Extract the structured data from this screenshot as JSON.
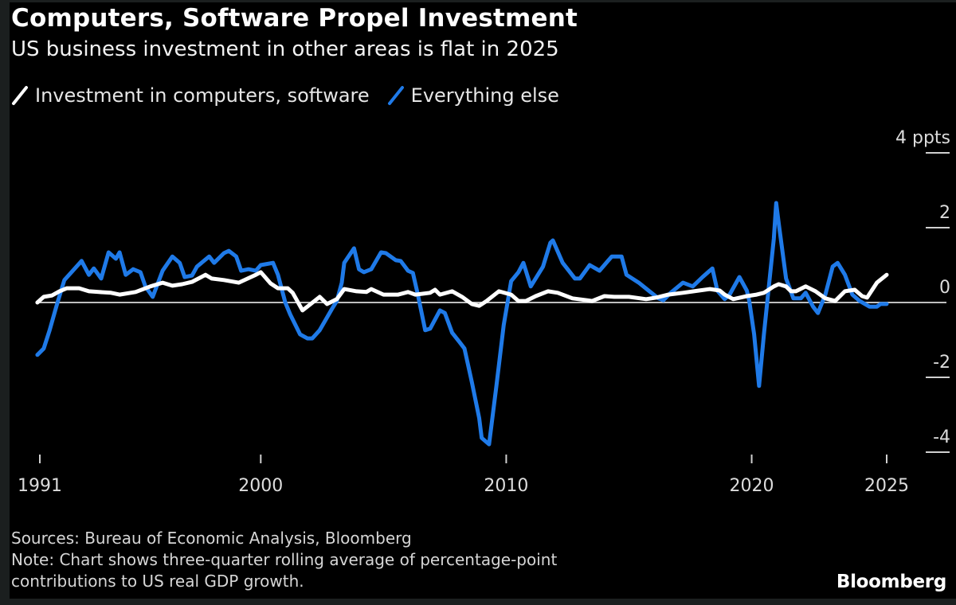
{
  "header": {
    "title": "Computers, Software Propel Investment",
    "subtitle": "US business investment in other areas is flat in 2025"
  },
  "legend": [
    {
      "label": "Investment in computers, software",
      "color": "#ffffff"
    },
    {
      "label": "Everything else",
      "color": "#1f7ae8"
    }
  ],
  "footer": {
    "sources": "Sources: Bureau of Economic Analysis, Bloomberg",
    "note_line1": "Note: Chart shows three-quarter rolling average of percentage-point",
    "note_line2": "contributions to US real GDP growth.",
    "brand": "Bloomberg"
  },
  "chart_data": {
    "type": "line",
    "title": "Computers, Software Propel Investment",
    "subtitle": "US business investment in other areas is flat in 2025",
    "xlabel": "",
    "ylabel": "ppts",
    "xlim": [
      1991,
      2025.5
    ],
    "ylim": [
      -4.2,
      4.2
    ],
    "x_ticks": [
      {
        "value": 1991,
        "label": "1991"
      },
      {
        "value": 2000,
        "label": "2000"
      },
      {
        "value": 2010,
        "label": "2010"
      },
      {
        "value": 2020,
        "label": "2020"
      },
      {
        "value": 2025.5,
        "label": "2025"
      }
    ],
    "y_ticks": [
      {
        "value": 4,
        "label": "4 ppts"
      },
      {
        "value": 2,
        "label": "2"
      },
      {
        "value": 0,
        "label": "0"
      },
      {
        "value": -2,
        "label": "-2"
      },
      {
        "value": -4,
        "label": "-4"
      }
    ],
    "grid": false,
    "zero_line": true,
    "legend_position": "top-left",
    "series": [
      {
        "name": "Investment in computers, software",
        "color": "#ffffff",
        "points": [
          [
            1990.9,
            0.0
          ],
          [
            1991.16,
            0.15
          ],
          [
            1991.5,
            0.19
          ],
          [
            1991.8,
            0.3
          ],
          [
            1992.1,
            0.38
          ],
          [
            1992.6,
            0.38
          ],
          [
            1993.0,
            0.3
          ],
          [
            1993.4,
            0.28
          ],
          [
            1993.9,
            0.26
          ],
          [
            1994.25,
            0.21
          ],
          [
            1994.9,
            0.28
          ],
          [
            1995.5,
            0.43
          ],
          [
            1996.0,
            0.53
          ],
          [
            1996.4,
            0.45
          ],
          [
            1996.8,
            0.49
          ],
          [
            1997.2,
            0.55
          ],
          [
            1997.75,
            0.74
          ],
          [
            1998.0,
            0.64
          ],
          [
            1998.5,
            0.6
          ],
          [
            1999.1,
            0.53
          ],
          [
            1999.4,
            0.62
          ],
          [
            1999.8,
            0.74
          ],
          [
            2000.0,
            0.81
          ],
          [
            2000.4,
            0.51
          ],
          [
            2000.7,
            0.38
          ],
          [
            2001.1,
            0.38
          ],
          [
            2001.3,
            0.26
          ],
          [
            2001.7,
            -0.21
          ],
          [
            2001.9,
            -0.11
          ],
          [
            2002.4,
            0.15
          ],
          [
            2002.7,
            -0.04
          ],
          [
            2003.1,
            0.09
          ],
          [
            2003.4,
            0.36
          ],
          [
            2003.9,
            0.3
          ],
          [
            2004.3,
            0.28
          ],
          [
            2004.5,
            0.36
          ],
          [
            2005.0,
            0.21
          ],
          [
            2005.6,
            0.21
          ],
          [
            2006.0,
            0.28
          ],
          [
            2006.3,
            0.21
          ],
          [
            2006.9,
            0.26
          ],
          [
            2007.1,
            0.34
          ],
          [
            2007.3,
            0.21
          ],
          [
            2007.8,
            0.3
          ],
          [
            2008.2,
            0.15
          ],
          [
            2008.6,
            -0.04
          ],
          [
            2008.9,
            -0.09
          ],
          [
            2009.2,
            0.04
          ],
          [
            2009.7,
            0.3
          ],
          [
            2010.2,
            0.21
          ],
          [
            2010.5,
            0.04
          ],
          [
            2010.8,
            0.04
          ],
          [
            2011.2,
            0.17
          ],
          [
            2011.7,
            0.3
          ],
          [
            2012.1,
            0.26
          ],
          [
            2012.7,
            0.11
          ],
          [
            2013.3,
            0.06
          ],
          [
            2013.5,
            0.04
          ],
          [
            2014.0,
            0.17
          ],
          [
            2014.4,
            0.15
          ],
          [
            2015.0,
            0.15
          ],
          [
            2015.7,
            0.09
          ],
          [
            2016.1,
            0.13
          ],
          [
            2016.6,
            0.21
          ],
          [
            2017.2,
            0.26
          ],
          [
            2017.85,
            0.32
          ],
          [
            2018.3,
            0.36
          ],
          [
            2018.7,
            0.32
          ],
          [
            2018.9,
            0.21
          ],
          [
            2019.25,
            0.09
          ],
          [
            2019.8,
            0.17
          ],
          [
            2020.2,
            0.21
          ],
          [
            2020.5,
            0.26
          ],
          [
            2020.9,
            0.43
          ],
          [
            2021.1,
            0.49
          ],
          [
            2021.4,
            0.43
          ],
          [
            2021.6,
            0.3
          ],
          [
            2021.8,
            0.3
          ],
          [
            2022.2,
            0.43
          ],
          [
            2022.6,
            0.3
          ],
          [
            2023.0,
            0.11
          ],
          [
            2023.4,
            0.04
          ],
          [
            2023.8,
            0.3
          ],
          [
            2024.2,
            0.34
          ],
          [
            2024.5,
            0.17
          ],
          [
            2024.7,
            0.13
          ],
          [
            2025.1,
            0.53
          ],
          [
            2025.5,
            0.74
          ]
        ]
      },
      {
        "name": "Everything else",
        "color": "#1f7ae8",
        "points": [
          [
            1990.9,
            -1.4
          ],
          [
            1991.16,
            -1.23
          ],
          [
            1991.4,
            -0.74
          ],
          [
            1991.7,
            -0.04
          ],
          [
            1992.0,
            0.6
          ],
          [
            1992.4,
            0.89
          ],
          [
            1992.7,
            1.11
          ],
          [
            1993.0,
            0.74
          ],
          [
            1993.2,
            0.91
          ],
          [
            1993.5,
            0.64
          ],
          [
            1993.8,
            1.34
          ],
          [
            1994.1,
            1.17
          ],
          [
            1994.25,
            1.34
          ],
          [
            1994.5,
            0.74
          ],
          [
            1994.8,
            0.89
          ],
          [
            1995.1,
            0.81
          ],
          [
            1995.3,
            0.43
          ],
          [
            1995.6,
            0.15
          ],
          [
            1996.0,
            0.85
          ],
          [
            1996.4,
            1.23
          ],
          [
            1996.7,
            1.06
          ],
          [
            1996.9,
            0.68
          ],
          [
            1997.2,
            0.72
          ],
          [
            1997.4,
            0.96
          ],
          [
            1997.9,
            1.23
          ],
          [
            1998.1,
            1.06
          ],
          [
            1998.5,
            1.32
          ],
          [
            1998.7,
            1.38
          ],
          [
            1999.0,
            1.23
          ],
          [
            1999.2,
            0.85
          ],
          [
            1999.5,
            0.89
          ],
          [
            1999.8,
            0.85
          ],
          [
            2000.0,
            1.0
          ],
          [
            2000.5,
            1.06
          ],
          [
            2000.7,
            0.74
          ],
          [
            2001.0,
            0.0
          ],
          [
            2001.2,
            -0.32
          ],
          [
            2001.6,
            -0.85
          ],
          [
            2001.9,
            -0.96
          ],
          [
            2002.1,
            -0.96
          ],
          [
            2002.4,
            -0.74
          ],
          [
            2002.9,
            -0.17
          ],
          [
            2003.1,
            0.04
          ],
          [
            2003.3,
            0.53
          ],
          [
            2003.4,
            1.06
          ],
          [
            2003.8,
            1.45
          ],
          [
            2004.0,
            0.89
          ],
          [
            2004.2,
            0.81
          ],
          [
            2004.5,
            0.89
          ],
          [
            2004.9,
            1.34
          ],
          [
            2005.1,
            1.32
          ],
          [
            2005.5,
            1.13
          ],
          [
            2005.7,
            1.11
          ],
          [
            2006.0,
            0.85
          ],
          [
            2006.2,
            0.79
          ],
          [
            2006.4,
            0.21
          ],
          [
            2006.7,
            -0.74
          ],
          [
            2006.9,
            -0.7
          ],
          [
            2007.3,
            -0.21
          ],
          [
            2007.5,
            -0.28
          ],
          [
            2007.8,
            -0.81
          ],
          [
            2008.1,
            -1.06
          ],
          [
            2008.3,
            -1.23
          ],
          [
            2008.6,
            -2.13
          ],
          [
            2008.9,
            -3.09
          ],
          [
            2009.0,
            -3.62
          ],
          [
            2009.3,
            -3.79
          ],
          [
            2009.6,
            -2.23
          ],
          [
            2009.9,
            -0.6
          ],
          [
            2010.2,
            0.57
          ],
          [
            2010.5,
            0.81
          ],
          [
            2010.7,
            1.06
          ],
          [
            2011.0,
            0.43
          ],
          [
            2011.5,
            0.96
          ],
          [
            2011.8,
            1.6
          ],
          [
            2011.9,
            1.66
          ],
          [
            2012.3,
            1.06
          ],
          [
            2012.8,
            0.64
          ],
          [
            2013.0,
            0.64
          ],
          [
            2013.4,
            1.0
          ],
          [
            2013.8,
            0.85
          ],
          [
            2014.3,
            1.23
          ],
          [
            2014.7,
            1.23
          ],
          [
            2014.9,
            0.74
          ],
          [
            2015.4,
            0.53
          ],
          [
            2015.8,
            0.32
          ],
          [
            2016.2,
            0.11
          ],
          [
            2016.4,
            0.06
          ],
          [
            2016.7,
            0.26
          ],
          [
            2017.2,
            0.53
          ],
          [
            2017.6,
            0.43
          ],
          [
            2018.0,
            0.68
          ],
          [
            2018.4,
            0.91
          ],
          [
            2018.6,
            0.32
          ],
          [
            2018.9,
            0.09
          ],
          [
            2019.1,
            0.21
          ],
          [
            2019.5,
            0.68
          ],
          [
            2019.8,
            0.32
          ],
          [
            2019.9,
            0.04
          ],
          [
            2020.1,
            -0.85
          ],
          [
            2020.3,
            -2.23
          ],
          [
            2020.5,
            -0.85
          ],
          [
            2020.7,
            0.43
          ],
          [
            2020.9,
            1.7
          ],
          [
            2021.0,
            2.66
          ],
          [
            2021.1,
            2.13
          ],
          [
            2021.4,
            0.64
          ],
          [
            2021.7,
            0.11
          ],
          [
            2022.0,
            0.11
          ],
          [
            2022.2,
            0.26
          ],
          [
            2022.5,
            -0.11
          ],
          [
            2022.7,
            -0.28
          ],
          [
            2023.0,
            0.21
          ],
          [
            2023.3,
            0.96
          ],
          [
            2023.5,
            1.06
          ],
          [
            2023.8,
            0.74
          ],
          [
            2024.1,
            0.21
          ],
          [
            2024.4,
            0.04
          ],
          [
            2024.8,
            -0.11
          ],
          [
            2025.1,
            -0.11
          ],
          [
            2025.25,
            -0.04
          ],
          [
            2025.5,
            -0.04
          ]
        ]
      }
    ],
    "annotations": []
  }
}
